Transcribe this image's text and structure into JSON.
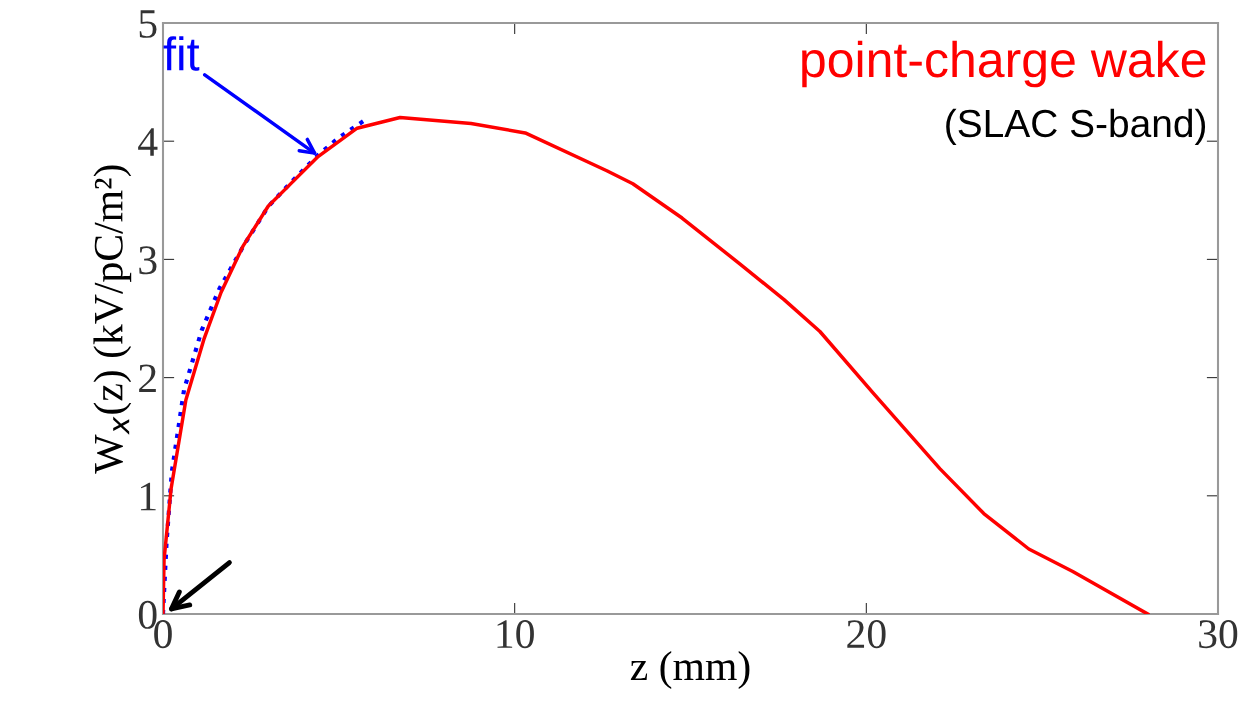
{
  "chart_data": {
    "type": "line",
    "xlabel": "z (mm)",
    "ylabel": "W$_{x}$(z) (kV/pC/m²)",
    "xlim": [
      0,
      30
    ],
    "ylim": [
      0,
      5
    ],
    "xticks": [
      0,
      10,
      20,
      30
    ],
    "yticks": [
      0,
      1,
      2,
      3,
      4,
      5
    ],
    "grid": false,
    "legend": false,
    "series": [
      {
        "name": "point-charge wake",
        "color": "#ff0000",
        "line_style": "solid",
        "x": [
          0,
          0.03,
          0.23,
          0.65,
          1.17,
          1.65,
          2.27,
          2.99,
          3.7,
          4.41,
          5.52,
          6.74,
          8.76,
          10.3,
          12.62,
          13.36,
          14.76,
          16.41,
          17.66,
          18.68,
          20.19,
          22.09,
          23.34,
          24.62,
          25.87,
          28.0
        ],
        "values": [
          0,
          0.46,
          1.06,
          1.81,
          2.33,
          2.72,
          3.11,
          3.45,
          3.66,
          3.87,
          4.11,
          4.2,
          4.15,
          4.07,
          3.75,
          3.64,
          3.35,
          2.96,
          2.66,
          2.39,
          1.87,
          1.23,
          0.85,
          0.55,
          0.36,
          0
        ]
      },
      {
        "name": "fit",
        "color": "#0000ff",
        "line_style": "dotted",
        "x": [
          0,
          0.1,
          0.25,
          0.6,
          1.1,
          1.6,
          2.3,
          3.0,
          3.7,
          4.4,
          5.0,
          5.7
        ],
        "values": [
          0,
          0.6,
          1.2,
          1.9,
          2.4,
          2.75,
          3.12,
          3.45,
          3.67,
          3.88,
          4.03,
          4.17
        ]
      }
    ],
    "annotations": [
      "(SLAC S-band)"
    ]
  }
}
